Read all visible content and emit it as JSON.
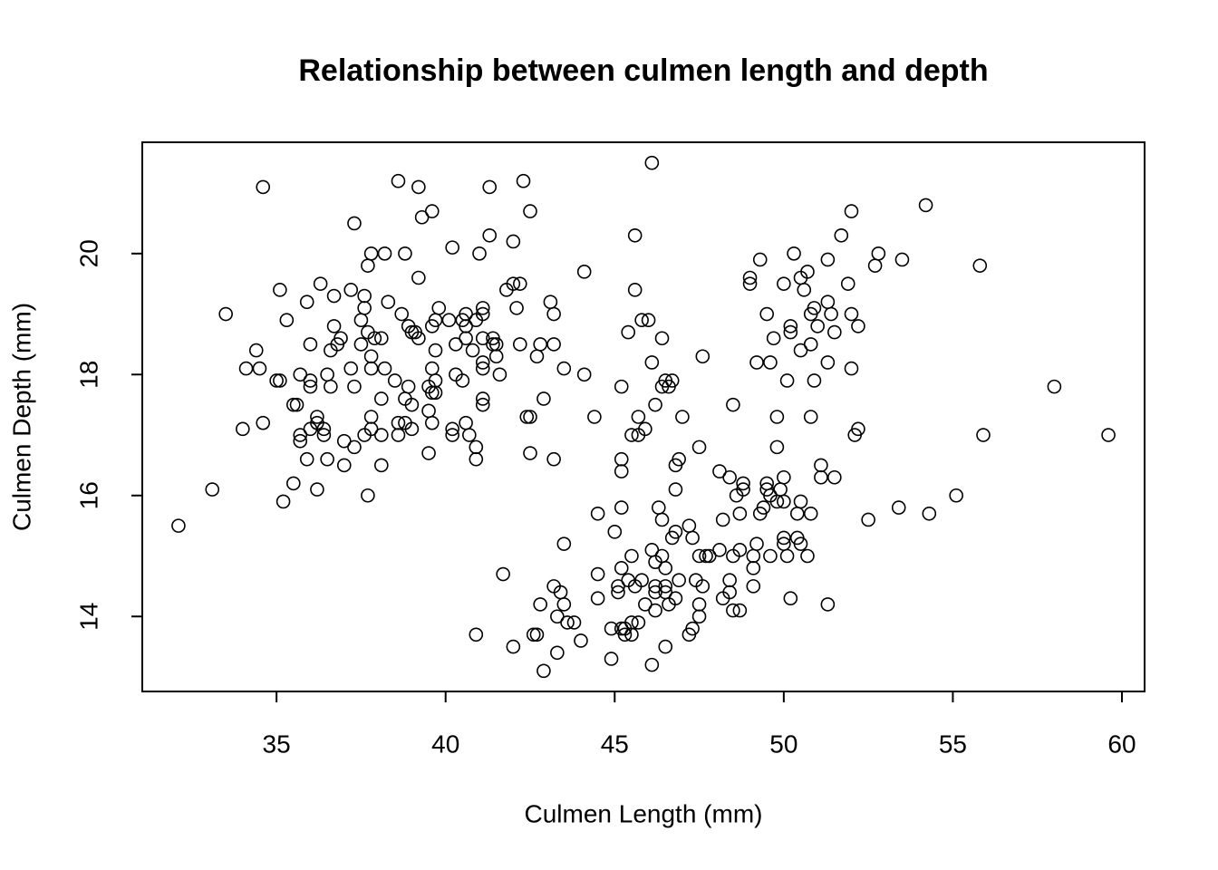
{
  "chart_data": {
    "type": "scatter",
    "title": "Relationship between culmen length and depth",
    "x_label": "Culmen Length (mm)",
    "y_label": "Culmen Depth (mm)",
    "xlim": [
      31.03,
      60.67
    ],
    "ylim": [
      12.76,
      21.84
    ],
    "xticks": [
      35,
      40,
      45,
      50,
      55,
      60
    ],
    "yticks": [
      14,
      16,
      18,
      20
    ],
    "color": "#000000",
    "grid": false,
    "x": [
      32.1,
      33.1,
      33.5,
      34.0,
      34.1,
      34.4,
      34.5,
      34.6,
      34.6,
      35.0,
      35.1,
      35.1,
      35.2,
      35.3,
      35.5,
      35.5,
      35.6,
      35.7,
      35.7,
      35.7,
      35.9,
      35.9,
      36.0,
      36.0,
      36.0,
      36.0,
      36.2,
      36.2,
      36.2,
      36.3,
      36.4,
      36.4,
      36.5,
      36.5,
      36.6,
      36.6,
      36.7,
      36.7,
      36.8,
      36.9,
      37.0,
      37.0,
      37.2,
      37.2,
      37.3,
      37.3,
      37.3,
      37.5,
      37.5,
      37.6,
      37.6,
      37.6,
      37.7,
      37.7,
      37.7,
      37.8,
      37.8,
      37.8,
      37.8,
      37.8,
      37.9,
      38.1,
      38.1,
      38.1,
      38.1,
      38.2,
      38.2,
      38.3,
      38.5,
      38.6,
      38.6,
      38.6,
      38.7,
      38.8,
      38.8,
      38.8,
      38.9,
      38.9,
      39.0,
      39.0,
      39.0,
      39.1,
      39.2,
      39.2,
      39.2,
      39.3,
      39.5,
      39.5,
      39.5,
      39.6,
      39.6,
      39.6,
      39.6,
      39.6,
      39.7,
      39.7,
      39.7,
      39.7,
      39.8,
      40.1,
      40.2,
      40.2,
      40.2,
      40.3,
      40.3,
      40.5,
      40.5,
      40.6,
      40.6,
      40.6,
      40.6,
      40.7,
      40.8,
      40.9,
      40.9,
      40.9,
      40.9,
      41.0,
      41.1,
      41.1,
      41.1,
      41.1,
      41.1,
      41.1,
      41.1,
      41.3,
      41.3,
      41.4,
      41.4,
      41.5,
      41.5,
      41.6,
      41.7,
      41.8,
      42.0,
      42.0,
      42.0,
      42.1,
      42.2,
      42.2,
      42.3,
      42.4,
      42.5,
      42.5,
      42.5,
      42.6,
      42.7,
      42.7,
      42.8,
      42.8,
      42.9,
      42.9,
      43.1,
      43.2,
      43.2,
      43.2,
      43.2,
      43.3,
      43.3,
      43.4,
      43.5,
      43.5,
      43.5,
      43.6,
      43.8,
      44.0,
      44.1,
      44.1,
      44.4,
      44.5,
      44.5,
      44.5,
      44.9,
      44.9,
      45.0,
      45.1,
      45.1,
      45.2,
      45.2,
      45.2,
      45.2,
      45.2,
      45.2,
      45.3,
      45.3,
      45.4,
      45.4,
      45.5,
      45.5,
      45.5,
      45.5,
      45.6,
      45.6,
      45.6,
      45.7,
      45.7,
      45.7,
      45.8,
      45.8,
      45.9,
      45.9,
      46.0,
      46.1,
      46.1,
      46.1,
      46.1,
      46.2,
      46.2,
      46.2,
      46.2,
      46.2,
      46.3,
      46.4,
      46.4,
      46.4,
      46.4,
      46.5,
      46.5,
      46.5,
      46.5,
      46.5,
      46.6,
      46.6,
      46.7,
      46.7,
      46.8,
      46.8,
      46.8,
      46.8,
      46.9,
      46.9,
      47.0,
      47.2,
      47.2,
      47.3,
      47.3,
      47.4,
      47.5,
      47.5,
      47.5,
      47.5,
      47.6,
      47.6,
      47.7,
      47.8,
      48.1,
      48.1,
      48.2,
      48.2,
      48.4,
      48.4,
      48.4,
      48.5,
      48.5,
      48.5,
      48.6,
      48.7,
      48.7,
      48.7,
      48.8,
      48.8,
      49.0,
      49.0,
      49.1,
      49.1,
      49.1,
      49.2,
      49.2,
      49.3,
      49.3,
      49.4,
      49.5,
      49.5,
      49.5,
      49.6,
      49.6,
      49.6,
      49.7,
      49.8,
      49.8,
      49.8,
      49.9,
      50.0,
      50.0,
      50.0,
      50.0,
      50.0,
      50.1,
      50.1,
      50.2,
      50.2,
      50.2,
      50.3,
      50.4,
      50.4,
      50.5,
      50.5,
      50.5,
      50.5,
      50.6,
      50.7,
      50.7,
      50.8,
      50.8,
      50.8,
      50.8,
      50.9,
      50.9,
      51.0,
      51.1,
      51.1,
      51.3,
      51.3,
      51.3,
      51.3,
      51.4,
      51.5,
      51.5,
      51.7,
      51.9,
      52.0,
      52.0,
      52.0,
      52.1,
      52.2,
      52.2,
      52.5,
      52.7,
      52.8,
      53.4,
      53.5,
      54.2,
      54.3,
      55.1,
      55.8,
      55.9,
      58.0,
      59.6
    ],
    "values": [
      15.5,
      16.1,
      19.0,
      17.1,
      18.1,
      18.4,
      18.1,
      21.1,
      17.2,
      17.9,
      17.9,
      19.4,
      15.9,
      18.9,
      16.2,
      17.5,
      17.5,
      16.9,
      17.0,
      18.0,
      19.2,
      16.6,
      17.8,
      17.9,
      18.5,
      17.1,
      17.3,
      17.2,
      16.1,
      19.5,
      17.1,
      17.0,
      18.0,
      16.6,
      18.4,
      17.8,
      19.3,
      18.8,
      18.5,
      18.6,
      16.5,
      16.9,
      18.1,
      19.4,
      17.8,
      16.8,
      20.5,
      18.5,
      18.9,
      19.1,
      19.3,
      17.0,
      19.8,
      16.0,
      18.7,
      20.0,
      18.1,
      18.3,
      17.3,
      17.1,
      18.6,
      16.5,
      17.0,
      18.6,
      17.6,
      20.0,
      18.1,
      19.2,
      17.9,
      21.2,
      17.2,
      17.0,
      19.0,
      20.0,
      17.6,
      17.2,
      18.8,
      17.8,
      17.1,
      17.5,
      18.7,
      18.7,
      21.1,
      18.6,
      19.6,
      20.6,
      17.8,
      16.7,
      17.4,
      20.7,
      18.8,
      18.1,
      17.7,
      17.2,
      17.7,
      18.4,
      18.9,
      17.9,
      19.1,
      18.9,
      20.1,
      17.1,
      17.0,
      18.5,
      18.0,
      17.9,
      18.9,
      19.0,
      18.6,
      17.2,
      18.8,
      17.0,
      18.4,
      18.9,
      16.8,
      16.6,
      13.7,
      20.0,
      19.1,
      19.0,
      18.2,
      18.1,
      17.6,
      17.5,
      18.6,
      20.3,
      21.1,
      18.6,
      18.5,
      18.3,
      18.5,
      18.0,
      14.7,
      19.4,
      20.2,
      19.5,
      13.5,
      19.1,
      18.5,
      19.5,
      21.2,
      17.3,
      17.3,
      20.7,
      16.7,
      13.7,
      18.3,
      13.7,
      18.5,
      14.2,
      17.6,
      13.1,
      19.2,
      16.6,
      19.0,
      18.5,
      14.5,
      14.0,
      13.4,
      14.4,
      14.2,
      18.1,
      15.2,
      13.9,
      13.9,
      13.6,
      18.0,
      19.7,
      17.3,
      15.7,
      14.7,
      14.3,
      13.3,
      13.8,
      15.4,
      14.4,
      14.5,
      14.8,
      16.4,
      16.6,
      17.8,
      15.8,
      13.8,
      13.7,
      13.8,
      18.7,
      14.6,
      15.0,
      13.9,
      13.7,
      17.0,
      19.4,
      20.3,
      14.5,
      17.3,
      17.0,
      13.9,
      14.6,
      18.9,
      14.2,
      17.1,
      18.9,
      21.5,
      15.1,
      18.2,
      13.2,
      17.5,
      14.9,
      14.5,
      14.4,
      14.1,
      15.8,
      15.0,
      15.6,
      18.6,
      17.8,
      17.9,
      14.8,
      14.5,
      14.4,
      13.5,
      17.8,
      14.2,
      17.9,
      15.3,
      16.5,
      16.1,
      15.4,
      14.3,
      16.6,
      14.6,
      17.3,
      15.5,
      13.7,
      15.3,
      13.8,
      14.6,
      15.0,
      14.0,
      14.2,
      16.8,
      18.3,
      14.5,
      15.0,
      15.0,
      15.1,
      16.4,
      15.6,
      14.3,
      14.6,
      16.3,
      14.4,
      17.5,
      14.1,
      15.0,
      16.0,
      14.1,
      15.1,
      15.7,
      16.2,
      16.1,
      19.6,
      19.5,
      14.8,
      14.5,
      15.0,
      18.2,
      15.2,
      15.7,
      19.9,
      15.8,
      16.2,
      16.1,
      19.0,
      16.0,
      18.2,
      15.0,
      18.6,
      17.3,
      15.9,
      16.8,
      16.1,
      19.5,
      16.3,
      15.9,
      15.2,
      15.3,
      17.9,
      15.0,
      18.8,
      18.7,
      14.3,
      20.0,
      15.7,
      15.3,
      19.6,
      18.4,
      15.9,
      15.2,
      19.4,
      19.7,
      15.0,
      19.0,
      18.5,
      17.3,
      15.7,
      19.1,
      17.9,
      18.8,
      16.5,
      16.3,
      19.9,
      19.2,
      18.2,
      14.2,
      19.0,
      18.7,
      16.3,
      20.3,
      19.5,
      20.7,
      19.0,
      18.1,
      17.0,
      17.1,
      18.8,
      15.6,
      19.8,
      20.0,
      15.8,
      19.9,
      20.8,
      15.7,
      16.0,
      19.8,
      17.0,
      17.8,
      17.0
    ]
  }
}
